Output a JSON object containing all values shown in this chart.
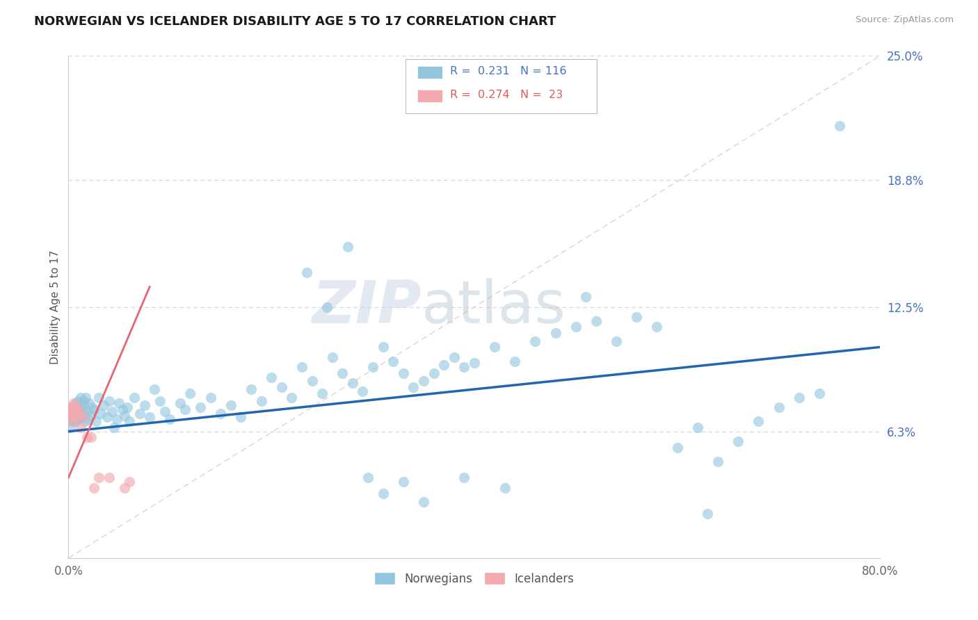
{
  "title": "NORWEGIAN VS ICELANDER DISABILITY AGE 5 TO 17 CORRELATION CHART",
  "source": "Source: ZipAtlas.com",
  "ylabel": "Disability Age 5 to 17",
  "xlim": [
    0.0,
    0.8
  ],
  "ylim": [
    0.0,
    0.25
  ],
  "xtick_labels": [
    "0.0%",
    "80.0%"
  ],
  "ytick_labels_right": [
    "6.3%",
    "12.5%",
    "18.8%",
    "25.0%"
  ],
  "ytick_vals_right": [
    0.063,
    0.125,
    0.188,
    0.25
  ],
  "norwegian_color": "#92c5de",
  "icelander_color": "#f4a9b0",
  "trend_norwegian_color": "#2166ac",
  "trend_icelander_color": "#e8646e",
  "diagonal_color": "#e8c0c5",
  "background_color": "#ffffff",
  "grid_color": "#c8d8e8",
  "legend_box_color": "#e8e8e8",
  "nor_R": 0.231,
  "nor_N": 116,
  "ice_R": 0.274,
  "ice_N": 23,
  "nor_trend_x0": 0.0,
  "nor_trend_y0": 0.063,
  "nor_trend_x1": 0.8,
  "nor_trend_y1": 0.105,
  "ice_trend_x0": 0.0,
  "ice_trend_y0": 0.04,
  "ice_trend_x1": 0.08,
  "ice_trend_y1": 0.135,
  "norwegians_x": [
    0.002,
    0.003,
    0.003,
    0.004,
    0.004,
    0.005,
    0.005,
    0.006,
    0.006,
    0.007,
    0.007,
    0.008,
    0.008,
    0.008,
    0.009,
    0.009,
    0.01,
    0.01,
    0.011,
    0.011,
    0.012,
    0.013,
    0.013,
    0.014,
    0.015,
    0.015,
    0.016,
    0.017,
    0.018,
    0.019,
    0.02,
    0.022,
    0.023,
    0.025,
    0.027,
    0.03,
    0.032,
    0.035,
    0.038,
    0.04,
    0.043,
    0.045,
    0.048,
    0.05,
    0.053,
    0.055,
    0.058,
    0.06,
    0.065,
    0.07,
    0.075,
    0.08,
    0.085,
    0.09,
    0.095,
    0.1,
    0.11,
    0.115,
    0.12,
    0.13,
    0.14,
    0.15,
    0.16,
    0.17,
    0.18,
    0.19,
    0.2,
    0.21,
    0.22,
    0.23,
    0.24,
    0.25,
    0.26,
    0.27,
    0.28,
    0.29,
    0.3,
    0.31,
    0.32,
    0.33,
    0.34,
    0.35,
    0.36,
    0.37,
    0.38,
    0.39,
    0.4,
    0.42,
    0.44,
    0.46,
    0.48,
    0.5,
    0.52,
    0.54,
    0.56,
    0.58,
    0.6,
    0.62,
    0.64,
    0.66,
    0.68,
    0.7,
    0.72,
    0.74,
    0.76,
    0.63,
    0.51,
    0.43,
    0.39,
    0.35,
    0.33,
    0.31,
    0.295,
    0.275,
    0.255,
    0.235
  ],
  "norwegians_y": [
    0.065,
    0.068,
    0.072,
    0.07,
    0.075,
    0.068,
    0.073,
    0.071,
    0.069,
    0.077,
    0.074,
    0.068,
    0.076,
    0.072,
    0.07,
    0.078,
    0.073,
    0.069,
    0.075,
    0.071,
    0.08,
    0.074,
    0.07,
    0.076,
    0.072,
    0.078,
    0.068,
    0.08,
    0.073,
    0.069,
    0.077,
    0.071,
    0.075,
    0.074,
    0.068,
    0.08,
    0.072,
    0.076,
    0.07,
    0.078,
    0.073,
    0.065,
    0.069,
    0.077,
    0.074,
    0.071,
    0.075,
    0.068,
    0.08,
    0.072,
    0.076,
    0.07,
    0.084,
    0.078,
    0.073,
    0.069,
    0.077,
    0.074,
    0.082,
    0.075,
    0.08,
    0.072,
    0.076,
    0.07,
    0.084,
    0.078,
    0.09,
    0.085,
    0.08,
    0.095,
    0.088,
    0.082,
    0.1,
    0.092,
    0.087,
    0.083,
    0.095,
    0.105,
    0.098,
    0.092,
    0.085,
    0.088,
    0.092,
    0.096,
    0.1,
    0.095,
    0.097,
    0.105,
    0.098,
    0.108,
    0.112,
    0.115,
    0.118,
    0.108,
    0.12,
    0.115,
    0.055,
    0.065,
    0.048,
    0.058,
    0.068,
    0.075,
    0.08,
    0.082,
    0.215,
    0.022,
    0.13,
    0.035,
    0.04,
    0.028,
    0.038,
    0.032,
    0.04,
    0.155,
    0.125,
    0.142
  ],
  "icelanders_x": [
    0.001,
    0.002,
    0.002,
    0.003,
    0.003,
    0.004,
    0.004,
    0.005,
    0.005,
    0.006,
    0.007,
    0.008,
    0.009,
    0.01,
    0.012,
    0.015,
    0.018,
    0.022,
    0.025,
    0.03,
    0.04,
    0.055,
    0.06
  ],
  "icelanders_y": [
    0.07,
    0.072,
    0.075,
    0.07,
    0.075,
    0.068,
    0.074,
    0.072,
    0.077,
    0.073,
    0.075,
    0.07,
    0.072,
    0.074,
    0.065,
    0.07,
    0.06,
    0.06,
    0.035,
    0.04,
    0.04,
    0.035,
    0.038
  ]
}
